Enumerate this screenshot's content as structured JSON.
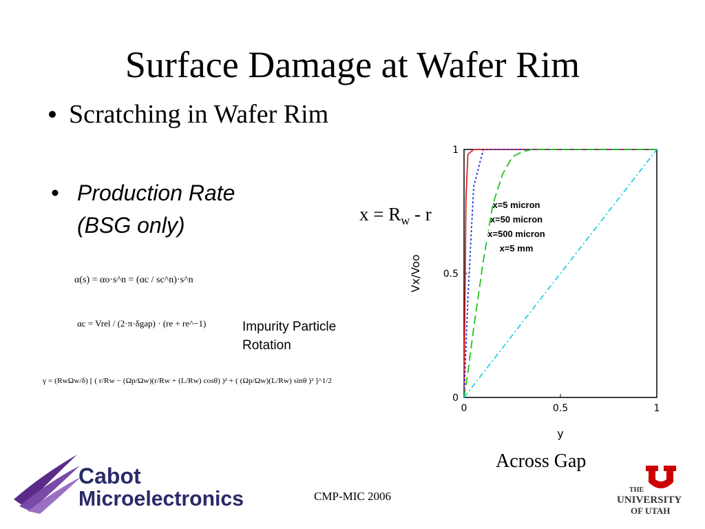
{
  "slide": {
    "title": "Surface Damage at Wafer Rim",
    "bullet1": "Scratching in Wafer Rim",
    "bullet2_line1": "Production Rate",
    "bullet2_line2": "(BSG only)",
    "equation1": "α(s) = αo·s^n = (αc / sc^n)·s^n",
    "equation2": "αc = Vrel / (2·π·δgap) · (re + re^−1)",
    "equation3": "γ = (RwΩw/δ) [ ( r/Rw − (Ωp/Ωw)(r/Rw + (L/Rw) cosθ) )² + ( (Ωp/Ωw)(L/Rw) sinθ )² ]^1/2",
    "note_line1": "Impurity Particle",
    "note_line2": "Rotation",
    "x_def_main": "x = R",
    "x_def_sub": "w",
    "x_def_rest": " - r",
    "across_gap": "Across Gap",
    "footer": "CMP-MIC 2006",
    "logo_left_line1": "Cabot",
    "logo_left_line2": "Microelectronics",
    "logo_right_line1": "THE",
    "logo_right_line2": "UNIVERSITY",
    "logo_right_line3": "OF UTAH"
  },
  "chart_data": {
    "type": "line",
    "xlabel": "y",
    "ylabel": "Vx/Voo",
    "xlim": [
      0,
      1
    ],
    "ylim": [
      0,
      1
    ],
    "xticks": [
      0,
      0.5,
      1
    ],
    "yticks": [
      0,
      0.5,
      1
    ],
    "x": [
      0,
      0.01,
      0.02,
      0.05,
      0.1,
      0.15,
      0.2,
      0.25,
      0.3,
      0.35,
      0.4,
      0.5,
      0.6,
      0.7,
      0.8,
      0.9,
      1
    ],
    "series": [
      {
        "name": "x=5 micron",
        "color": "#e02020",
        "linestyle": "solid",
        "values": [
          0,
          0.8,
          0.98,
          1,
          1,
          1,
          1,
          1,
          1,
          1,
          1,
          1,
          1,
          1,
          1,
          1,
          1
        ]
      },
      {
        "name": "x=50 micron",
        "color": "#2030e0",
        "linestyle": "dotted",
        "values": [
          0,
          0.2,
          0.4,
          0.85,
          1,
          1,
          1,
          1,
          1,
          1,
          1,
          1,
          1,
          1,
          1,
          1,
          1
        ]
      },
      {
        "name": "x=500 micron",
        "color": "#20c020",
        "linestyle": "dashed",
        "values": [
          0,
          0.05,
          0.1,
          0.28,
          0.55,
          0.78,
          0.9,
          0.97,
          0.99,
          1,
          1,
          1,
          1,
          1,
          1,
          1,
          1
        ]
      },
      {
        "name": "x=5 mm",
        "color": "#20d0e0",
        "linestyle": "dashdot",
        "values": [
          0,
          0.01,
          0.02,
          0.05,
          0.1,
          0.15,
          0.2,
          0.25,
          0.3,
          0.35,
          0.4,
          0.5,
          0.6,
          0.7,
          0.8,
          0.9,
          1
        ]
      }
    ]
  }
}
